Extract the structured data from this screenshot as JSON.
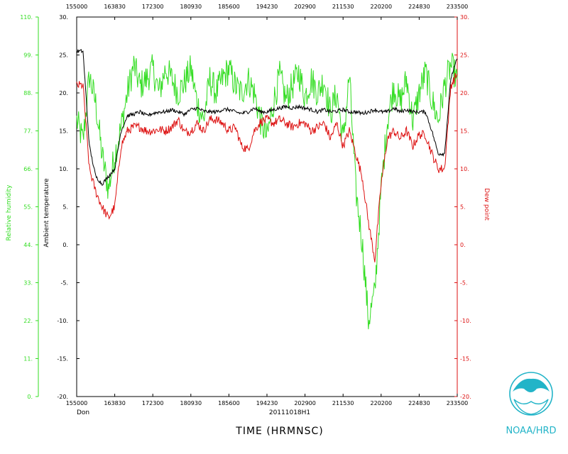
{
  "colors": {
    "humidity": "#33dd22",
    "temperature": "#000000",
    "dewpoint": "#dd1111",
    "logo": "#22b4c8"
  },
  "footer": {
    "storm": "Don",
    "flight": "20111018H1",
    "xlabel": "TIME (HRMNSC)",
    "org": "NOAA/HRD"
  },
  "chart_data": {
    "type": "line",
    "x_ticks": [
      "155000",
      "163830",
      "172300",
      "180930",
      "185600",
      "194230",
      "202900",
      "211530",
      "220200",
      "224830",
      "233500"
    ],
    "xlabel": "TIME (HRMNSC)",
    "axes": {
      "humidity": {
        "label": "Relative humidity",
        "ticks": [
          "110.",
          "99.",
          "88.",
          "77.",
          "66.",
          "55.",
          "44.",
          "33.",
          "22.",
          "11.",
          "0."
        ],
        "ylim": [
          0,
          110
        ]
      },
      "temperature": {
        "label": "Ambient temperature",
        "ticks": [
          "30.",
          "25.",
          "20.",
          "15.",
          "10.",
          "5.",
          "0.",
          "-5.",
          "-10.",
          "-15.",
          "-20."
        ],
        "ylim": [
          -20,
          30
        ]
      },
      "dewpoint": {
        "label": "Dew point",
        "ticks": [
          "30.",
          "25.",
          "20.",
          "15.",
          "10.",
          "5.",
          "0.",
          "-5.",
          "-10.",
          "-15.",
          "-20."
        ],
        "ylim": [
          -20,
          30
        ]
      }
    },
    "series": [
      {
        "key": "humidity",
        "axis": "humidity",
        "points": [
          [
            0,
            80
          ],
          [
            1,
            74
          ],
          [
            2,
            93
          ],
          [
            3,
            85
          ],
          [
            4,
            70
          ],
          [
            5,
            60
          ],
          [
            6,
            70
          ],
          [
            7,
            78
          ],
          [
            8,
            88
          ],
          [
            9,
            96
          ],
          [
            10,
            90
          ],
          [
            11,
            92
          ],
          [
            12,
            95
          ],
          [
            13,
            88
          ],
          [
            14,
            95
          ],
          [
            15,
            92
          ],
          [
            16,
            88
          ],
          [
            17,
            91
          ],
          [
            18,
            95
          ],
          [
            19,
            85
          ],
          [
            20,
            80
          ],
          [
            21,
            92
          ],
          [
            22,
            88
          ],
          [
            23,
            92
          ],
          [
            24,
            95
          ],
          [
            25,
            90
          ],
          [
            26,
            88
          ],
          [
            27,
            92
          ],
          [
            28,
            88
          ],
          [
            29,
            80
          ],
          [
            30,
            75
          ],
          [
            31,
            85
          ],
          [
            32,
            93
          ],
          [
            33,
            86
          ],
          [
            34,
            90
          ],
          [
            35,
            94
          ],
          [
            36,
            87
          ],
          [
            37,
            92
          ],
          [
            38,
            88
          ],
          [
            39,
            92
          ],
          [
            40,
            82
          ],
          [
            41,
            88
          ],
          [
            42,
            74
          ],
          [
            43,
            93
          ],
          [
            44,
            60
          ],
          [
            45,
            45
          ],
          [
            46,
            22
          ],
          [
            47,
            30
          ],
          [
            48,
            60
          ],
          [
            49,
            80
          ],
          [
            50,
            90
          ],
          [
            51,
            85
          ],
          [
            52,
            92
          ],
          [
            53,
            80
          ],
          [
            54,
            88
          ],
          [
            55,
            94
          ],
          [
            56,
            86
          ],
          [
            57,
            80
          ],
          [
            58,
            90
          ],
          [
            59,
            96
          ],
          [
            60,
            92
          ]
        ]
      },
      {
        "key": "temperature",
        "axis": "temperature",
        "points": [
          [
            0,
            25.5
          ],
          [
            1,
            25.5
          ],
          [
            2,
            13
          ],
          [
            3,
            9
          ],
          [
            4,
            8
          ],
          [
            5,
            9
          ],
          [
            6,
            10
          ],
          [
            7,
            15
          ],
          [
            8,
            17
          ],
          [
            9,
            17.2
          ],
          [
            10,
            17.5
          ],
          [
            11,
            17
          ],
          [
            12,
            17.3
          ],
          [
            13,
            17.5
          ],
          [
            14,
            17.5
          ],
          [
            15,
            17.8
          ],
          [
            16,
            17.5
          ],
          [
            17,
            17.2
          ],
          [
            18,
            17.8
          ],
          [
            19,
            18
          ],
          [
            20,
            17.6
          ],
          [
            21,
            17.5
          ],
          [
            22,
            17.5
          ],
          [
            23,
            17.8
          ],
          [
            24,
            17.8
          ],
          [
            25,
            17.5
          ],
          [
            26,
            17.3
          ],
          [
            27,
            17.5
          ],
          [
            28,
            18
          ],
          [
            29,
            17.5
          ],
          [
            30,
            17.5
          ],
          [
            31,
            17.8
          ],
          [
            32,
            18
          ],
          [
            33,
            18.2
          ],
          [
            34,
            18
          ],
          [
            35,
            18.2
          ],
          [
            36,
            18
          ],
          [
            37,
            17.8
          ],
          [
            38,
            17.5
          ],
          [
            39,
            17.8
          ],
          [
            40,
            17.5
          ],
          [
            41,
            17.6
          ],
          [
            42,
            17.8
          ],
          [
            43,
            17.5
          ],
          [
            44,
            17.5
          ],
          [
            45,
            17.3
          ],
          [
            46,
            17.5
          ],
          [
            47,
            17.8
          ],
          [
            48,
            17.5
          ],
          [
            49,
            17.5
          ],
          [
            50,
            18
          ],
          [
            51,
            17.5
          ],
          [
            52,
            17.8
          ],
          [
            53,
            17.5
          ],
          [
            54,
            17.5
          ],
          [
            55,
            17.5
          ],
          [
            56,
            15
          ],
          [
            57,
            12
          ],
          [
            58,
            12
          ],
          [
            59,
            22
          ],
          [
            60,
            24.5
          ]
        ]
      },
      {
        "key": "dewpoint",
        "axis": "dewpoint",
        "points": [
          [
            0,
            21
          ],
          [
            1,
            21
          ],
          [
            2,
            10
          ],
          [
            3,
            7
          ],
          [
            4,
            5
          ],
          [
            5,
            3.5
          ],
          [
            6,
            5
          ],
          [
            7,
            13
          ],
          [
            8,
            15
          ],
          [
            9,
            15.5
          ],
          [
            10,
            15.5
          ],
          [
            11,
            15
          ],
          [
            12,
            15
          ],
          [
            13,
            15.2
          ],
          [
            14,
            15
          ],
          [
            15,
            15.5
          ],
          [
            16,
            16.5
          ],
          [
            17,
            14.8
          ],
          [
            18,
            15
          ],
          [
            19,
            16
          ],
          [
            20,
            15
          ],
          [
            21,
            16.5
          ],
          [
            22,
            16.5
          ],
          [
            23,
            16
          ],
          [
            24,
            15
          ],
          [
            25,
            15.5
          ],
          [
            26,
            13
          ],
          [
            27,
            12.5
          ],
          [
            28,
            15
          ],
          [
            29,
            16.2
          ],
          [
            30,
            16.5
          ],
          [
            31,
            16
          ],
          [
            32,
            16.5
          ],
          [
            33,
            16
          ],
          [
            34,
            15.5
          ],
          [
            35,
            16
          ],
          [
            36,
            16
          ],
          [
            37,
            15
          ],
          [
            38,
            15.5
          ],
          [
            39,
            16
          ],
          [
            40,
            14
          ],
          [
            41,
            16
          ],
          [
            42,
            13
          ],
          [
            43,
            15
          ],
          [
            44,
            12
          ],
          [
            45,
            9
          ],
          [
            46,
            3
          ],
          [
            47,
            -2
          ],
          [
            48,
            8
          ],
          [
            49,
            14
          ],
          [
            50,
            15
          ],
          [
            51,
            14
          ],
          [
            52,
            15
          ],
          [
            53,
            13
          ],
          [
            54,
            14.5
          ],
          [
            55,
            14.5
          ],
          [
            56,
            12
          ],
          [
            57,
            10
          ],
          [
            58,
            10
          ],
          [
            59,
            21
          ],
          [
            60,
            22.5
          ]
        ]
      }
    ]
  }
}
